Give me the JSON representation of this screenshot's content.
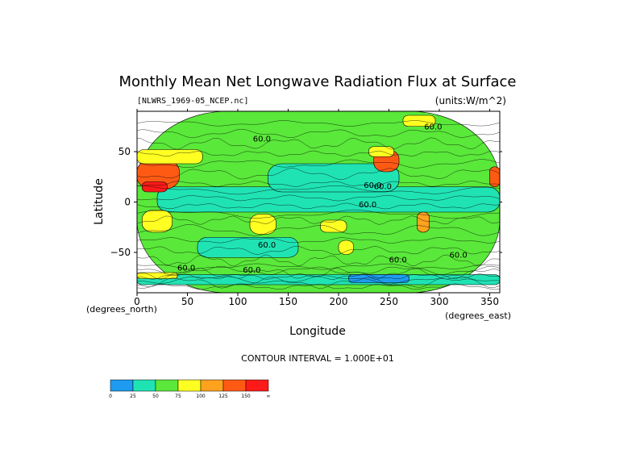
{
  "chart_data": {
    "type": "heatmap",
    "title": "Monthly Mean Net Longwave Radiation Flux at Surface",
    "file_label": "[NLWRS_1969-05_NCEP.nc]",
    "units_label": "(units:W/m^2)",
    "xlabel": "Longitude",
    "ylabel": "Latitude",
    "x_unit_label": "(degrees_east)",
    "y_unit_label": "(degrees_north)",
    "xlim": [
      0,
      360
    ],
    "ylim": [
      -90,
      90
    ],
    "x_ticks": [
      0,
      50,
      100,
      150,
      200,
      250,
      300,
      350
    ],
    "y_ticks": [
      50,
      0,
      -50
    ],
    "contour_interval_text": "CONTOUR INTERVAL = 1.000E+01",
    "contour_labels": [
      "60.0",
      "60.0",
      "60.0",
      "60.0",
      "60.0",
      "60.0",
      "60.0",
      "60.0",
      "60.0",
      "60.0"
    ],
    "colorbar": {
      "levels": [
        "0",
        "25",
        "50",
        "75",
        "100",
        "125",
        "150",
        "∞"
      ],
      "colors": [
        "#1e9bf0",
        "#20e3b4",
        "#5ae83a",
        "#ffff22",
        "#ffa21e",
        "#ff5a14",
        "#ff1a1a"
      ]
    },
    "regions": [
      {
        "lon": [
          0,
          360
        ],
        "lat": [
          -90,
          90
        ],
        "level": 2
      },
      {
        "lon": [
          20,
          360
        ],
        "lat": [
          -10,
          15
        ],
        "level": 1
      },
      {
        "lon": [
          130,
          260
        ],
        "lat": [
          10,
          38
        ],
        "level": 1
      },
      {
        "lon": [
          60,
          160
        ],
        "lat": [
          -55,
          -35
        ],
        "level": 1
      },
      {
        "lon": [
          0,
          42
        ],
        "lat": [
          13,
          42
        ],
        "level": 5
      },
      {
        "lon": [
          5,
          30
        ],
        "lat": [
          10,
          20
        ],
        "level": 6
      },
      {
        "lon": [
          0,
          65
        ],
        "lat": [
          38,
          52
        ],
        "level": 3
      },
      {
        "lon": [
          235,
          260
        ],
        "lat": [
          30,
          52
        ],
        "level": 5
      },
      {
        "lon": [
          230,
          255
        ],
        "lat": [
          45,
          55
        ],
        "level": 3
      },
      {
        "lon": [
          350,
          360
        ],
        "lat": [
          15,
          35
        ],
        "level": 5
      },
      {
        "lon": [
          264,
          296
        ],
        "lat": [
          75,
          86
        ],
        "level": 3
      },
      {
        "lon": [
          5,
          35
        ],
        "lat": [
          -30,
          -8
        ],
        "level": 3
      },
      {
        "lon": [
          112,
          138
        ],
        "lat": [
          -32,
          -12
        ],
        "level": 3
      },
      {
        "lon": [
          182,
          208
        ],
        "lat": [
          -30,
          -18
        ],
        "level": 3
      },
      {
        "lon": [
          200,
          215
        ],
        "lat": [
          -52,
          -38
        ],
        "level": 3
      },
      {
        "lon": [
          278,
          290
        ],
        "lat": [
          -30,
          -10
        ],
        "level": 4
      },
      {
        "lon": [
          0,
          360
        ],
        "lat": [
          -82,
          -72
        ],
        "level": 1
      },
      {
        "lon": [
          210,
          270
        ],
        "lat": [
          -80,
          -72
        ],
        "level": 0
      },
      {
        "lon": [
          0,
          40
        ],
        "lat": [
          -76,
          -70
        ],
        "level": 3
      }
    ]
  }
}
